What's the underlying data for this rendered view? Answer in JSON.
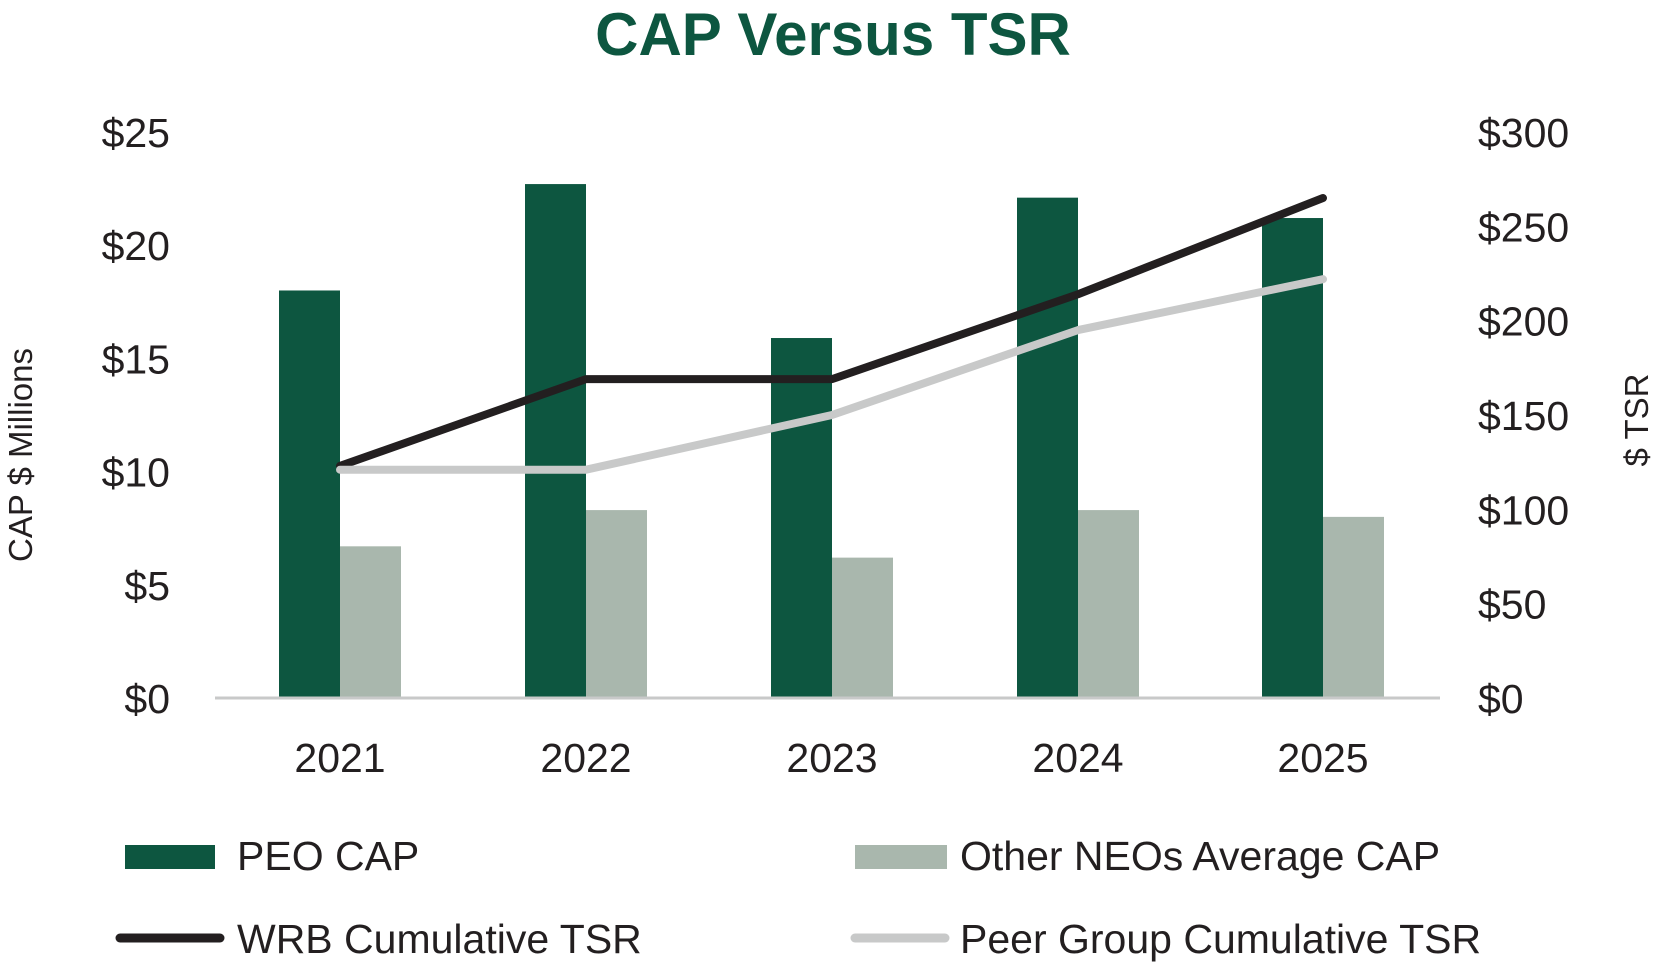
{
  "chart_data": {
    "type": "bar",
    "title": "CAP Versus TSR",
    "categories": [
      "2021",
      "2022",
      "2023",
      "2024",
      "2025"
    ],
    "ylabel": "CAP $ Millions",
    "ylabel_right": "$ TSR",
    "ylim": [
      0,
      25
    ],
    "ylim_right": [
      0,
      300
    ],
    "yticks": [
      "$0",
      "$5",
      "$10",
      "$15",
      "$20",
      "$25"
    ],
    "yticks_right": [
      "$0",
      "$50",
      "$100",
      "$150",
      "$200",
      "$250",
      "$300"
    ],
    "grid": false,
    "legend_position": "bottom",
    "series": [
      {
        "name": "PEO CAP",
        "type": "bar",
        "axis": "left",
        "color": "#0d5640",
        "values": [
          18.0,
          22.7,
          15.9,
          22.1,
          21.2
        ]
      },
      {
        "name": "Other NEOs Average CAP",
        "type": "bar",
        "axis": "left",
        "color": "#a9b7ad",
        "values": [
          6.7,
          8.3,
          6.2,
          8.3,
          8.0
        ]
      },
      {
        "name": "WRB Cumulative TSR",
        "type": "line",
        "axis": "right",
        "color": "#231f20",
        "values": [
          123,
          169,
          169,
          214,
          265
        ]
      },
      {
        "name": "Peer Group Cumulative TSR",
        "type": "line",
        "axis": "right",
        "color": "#c8c9c9",
        "values": [
          121,
          121,
          150,
          195,
          222
        ]
      }
    ]
  },
  "colors": {
    "title": "#0d5640",
    "axis_line": "#c8c9c9",
    "text": "#231f20"
  }
}
